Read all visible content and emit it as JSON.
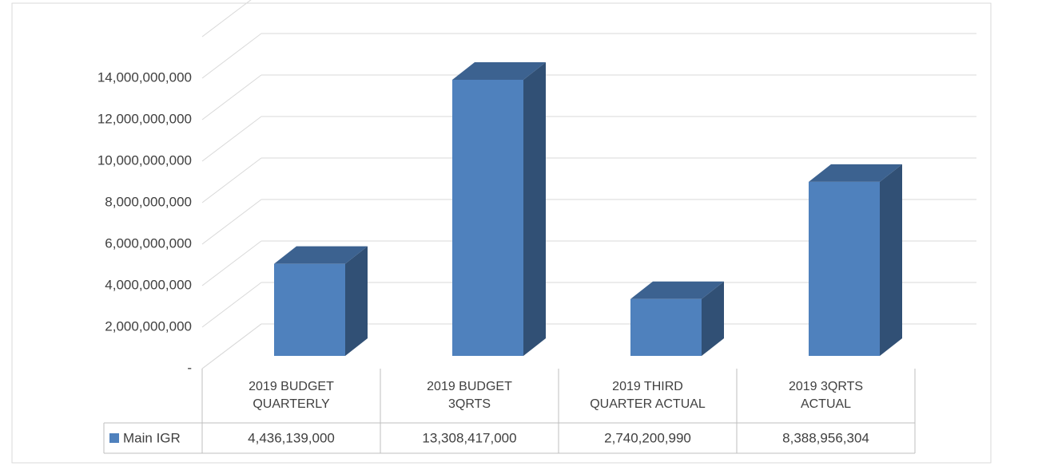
{
  "chart_data": {
    "type": "bar3d",
    "categories": [
      "2019 BUDGET QUARTERLY",
      "2019 BUDGET 3QRTS",
      "2019 THIRD QUARTER ACTUAL",
      "2019 3QRTS ACTUAL"
    ],
    "series": [
      {
        "name": "Main IGR",
        "color": "#4f81bd",
        "values": [
          4436139000,
          13308417000,
          2740200990,
          8388956304
        ],
        "value_labels": [
          "4,436,139,000",
          "13,308,417,000",
          "2,740,200,990",
          "8,388,956,304"
        ]
      }
    ],
    "ylim": [
      0,
      16000000000
    ],
    "yticks": [
      {
        "value": 0,
        "label": "-"
      },
      {
        "value": 2000000000,
        "label": "2,000,000,000"
      },
      {
        "value": 4000000000,
        "label": "4,000,000,000"
      },
      {
        "value": 6000000000,
        "label": "6,000,000,000"
      },
      {
        "value": 8000000000,
        "label": "8,000,000,000"
      },
      {
        "value": 10000000000,
        "label": "10,000,000,000"
      },
      {
        "value": 12000000000,
        "label": "12,000,000,000"
      },
      {
        "value": 14000000000,
        "label": "14,000,000,000"
      }
    ],
    "grid": true,
    "legend": "table"
  }
}
